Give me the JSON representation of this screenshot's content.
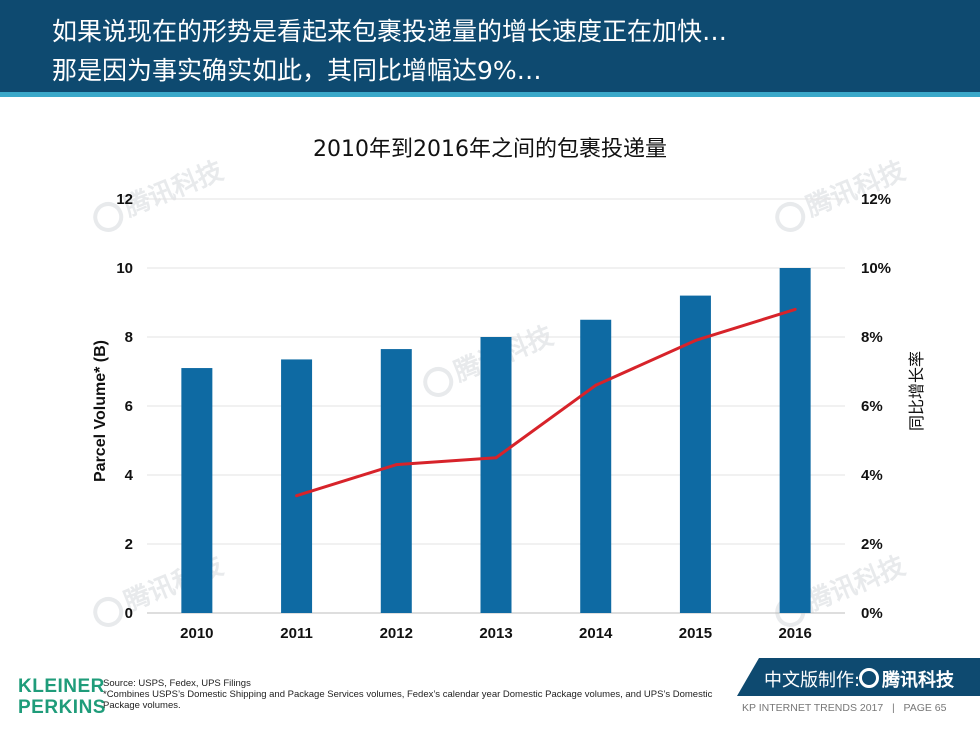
{
  "header": {
    "line1": "如果说现在的形势是看起来包裹投递量的增长速度正在加快…",
    "line2": "那是因为事实确实如此，其同比增幅达9%…"
  },
  "chart_data": {
    "type": "bar",
    "title": "2010年到2016年之间的包裹投递量",
    "categories": [
      "2010",
      "2011",
      "2012",
      "2013",
      "2014",
      "2015",
      "2016"
    ],
    "series": [
      {
        "name": "Parcel Volume* (B)",
        "type": "bar",
        "axis": "left",
        "color": "#0e6aa3",
        "values": [
          7.1,
          7.35,
          7.65,
          8.0,
          8.5,
          9.2,
          10.0
        ]
      },
      {
        "name": "同比增长率",
        "type": "line",
        "axis": "right",
        "color": "#d7232a",
        "values": [
          null,
          3.4,
          4.3,
          4.5,
          6.6,
          7.9,
          8.8
        ]
      }
    ],
    "ylabel": "Parcel Volume* (B)",
    "ylim": [
      0,
      12
    ],
    "yticks": [
      "0",
      "2",
      "4",
      "6",
      "8",
      "10",
      "12"
    ],
    "y2label": "同比增长率",
    "y2lim": [
      0,
      12
    ],
    "y2ticks": [
      "0%",
      "2%",
      "4%",
      "6%",
      "8%",
      "10%",
      "12%"
    ],
    "grid": true
  },
  "watermark": {
    "text": "腾讯科技"
  },
  "footer": {
    "logo_line1": "KLEINER",
    "logo_line2": "PERKINS",
    "source": "Source: USPS, Fedex, UPS Filings",
    "note": "*Combines USPS’s Domestic Shipping and Package Services volumes, Fedex’s calendar year Domestic Package volumes, and UPS’s Domestic Package volumes.",
    "tag_label": "中文版制作:",
    "tag_brand": "腾讯科技",
    "trends": "KP INTERNET TRENDS 2017",
    "separator": "|",
    "page": "PAGE 65"
  },
  "colors": {
    "header_bg": "#0e4a70",
    "accent": "#3aa8c9",
    "bar": "#0e6aa3",
    "line": "#d7232a",
    "logo_green": "#1f9c7a"
  }
}
